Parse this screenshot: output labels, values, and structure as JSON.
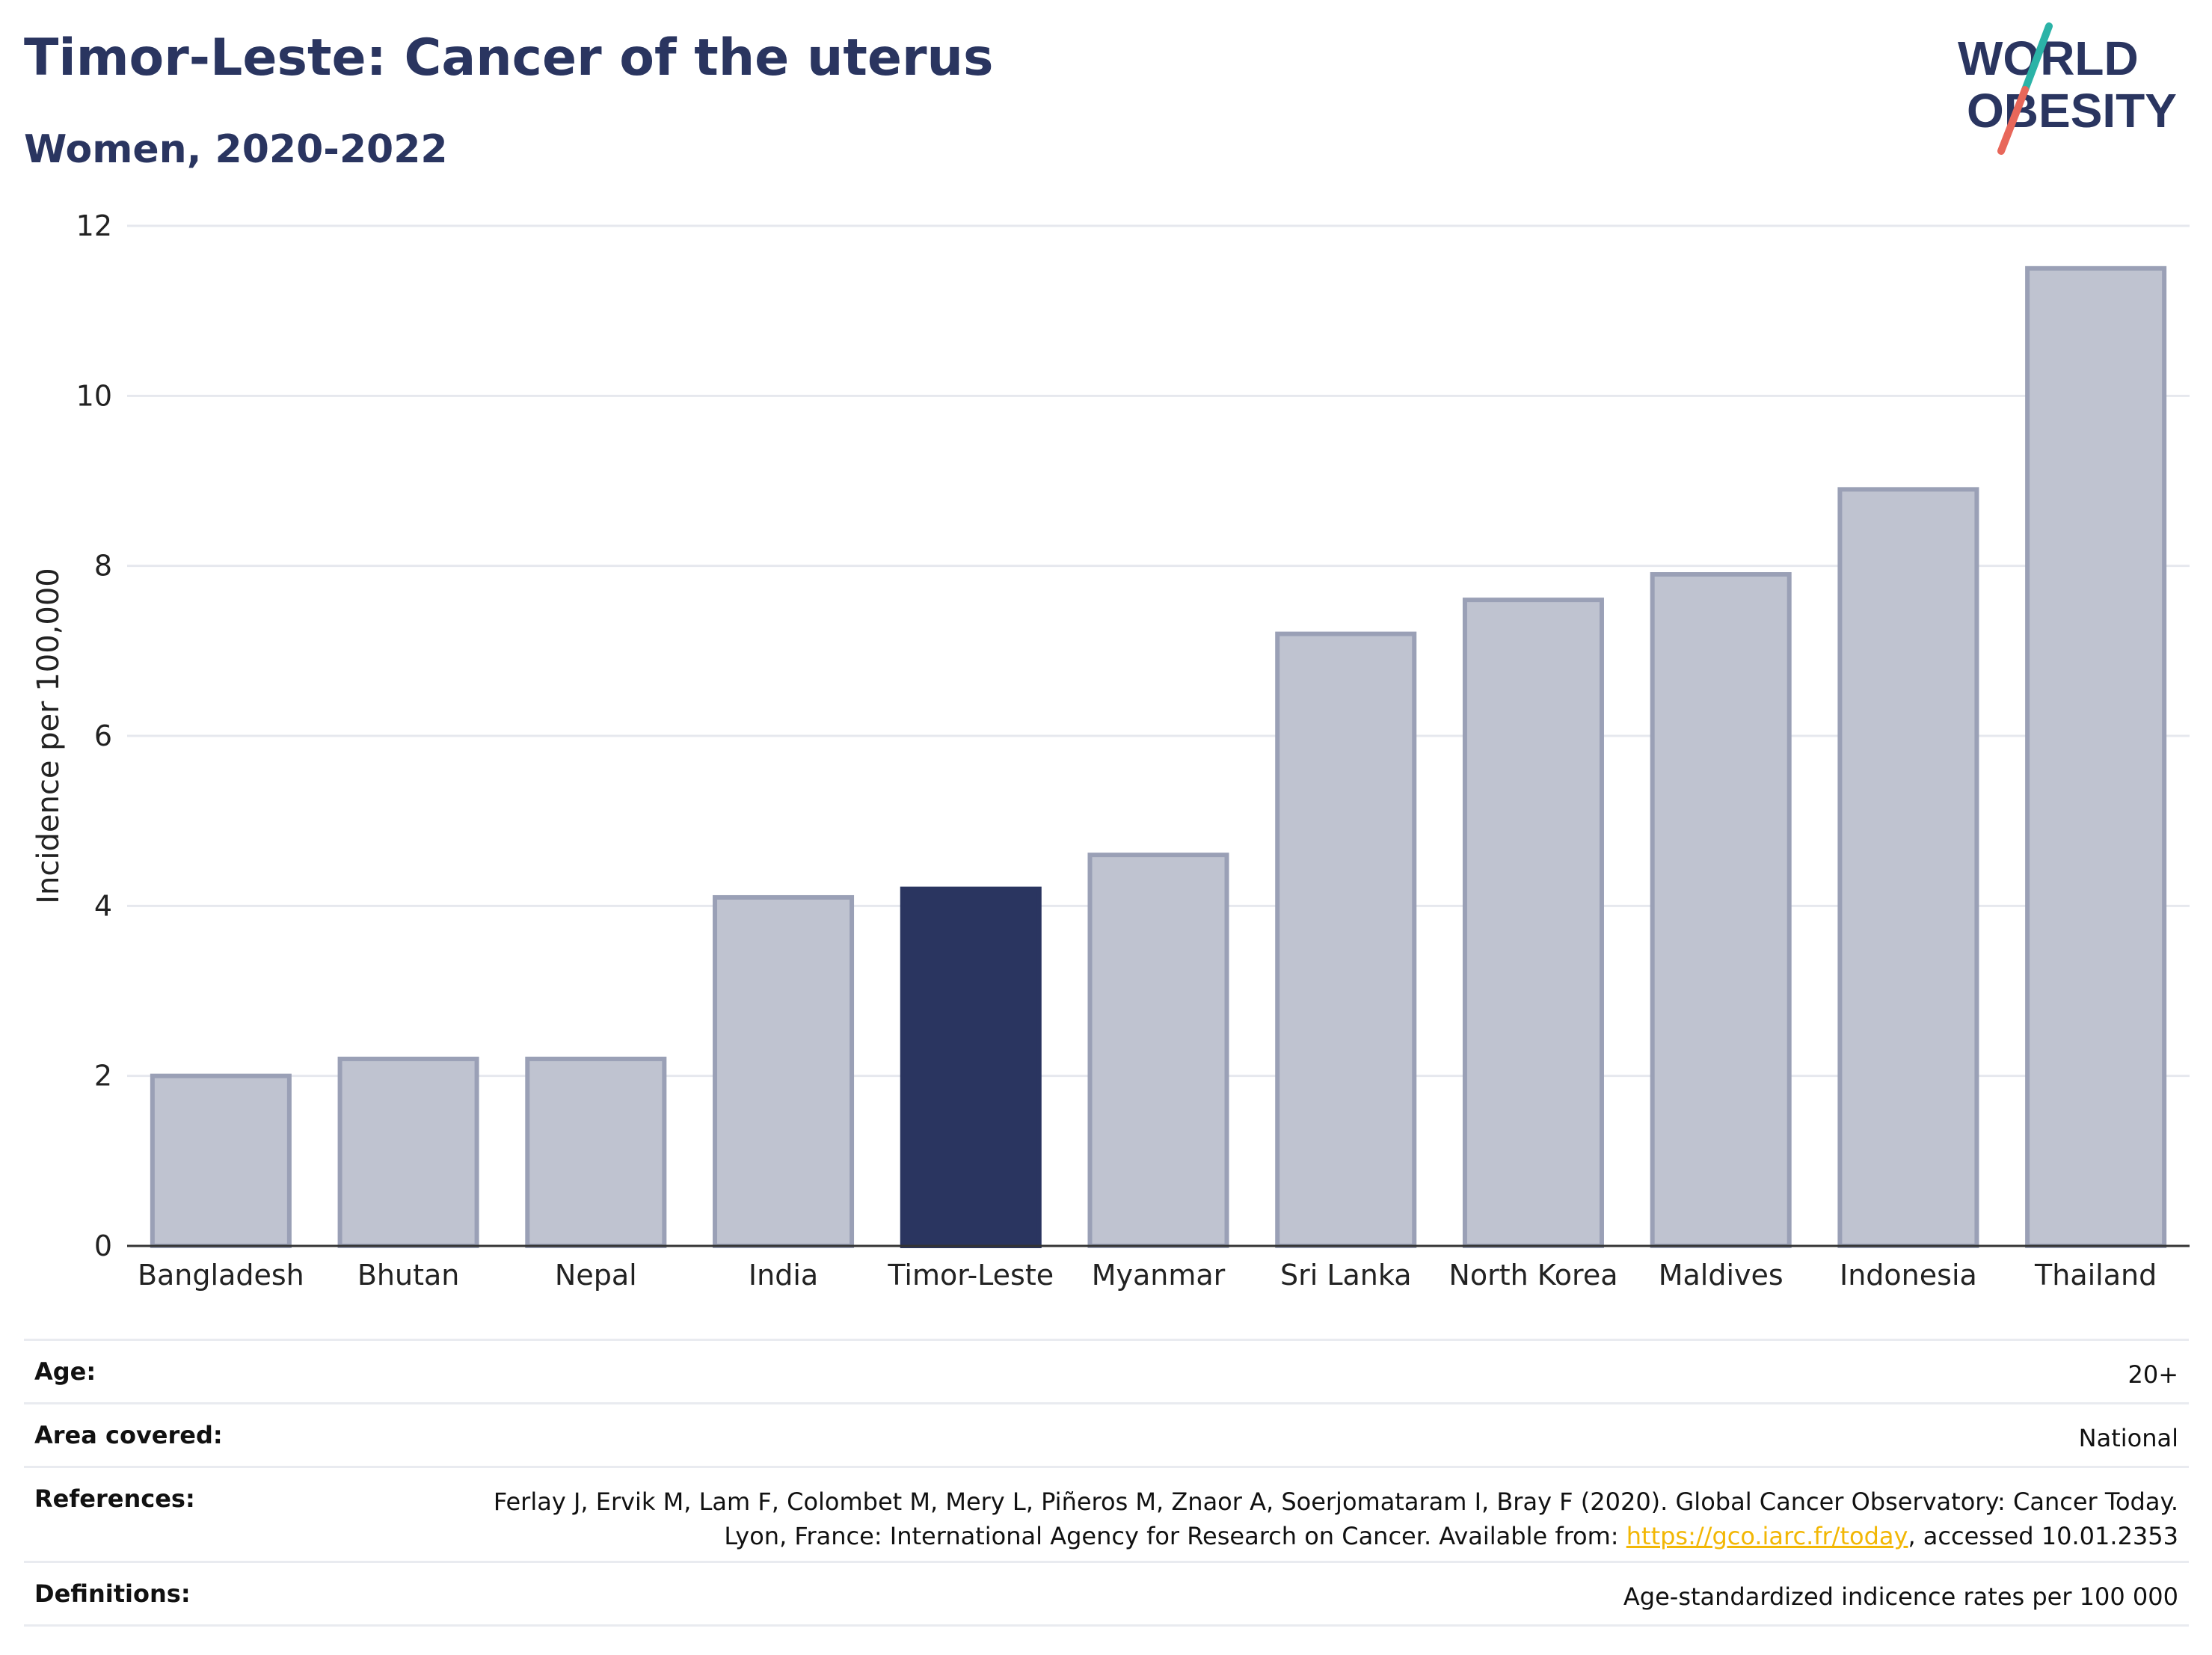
{
  "header": {
    "title": "Timor-Leste: Cancer of the uterus",
    "subtitle": "Women, 2020-2022"
  },
  "logo": {
    "line1": "WORLD",
    "line2": "OBESITY",
    "colors": {
      "text": "#2a3560",
      "slash_teal": "#2bb3a7",
      "slash_coral": "#e8675a"
    }
  },
  "chart_data": {
    "type": "bar",
    "categories": [
      "Bangladesh",
      "Bhutan",
      "Nepal",
      "India",
      "Timor-Leste",
      "Myanmar",
      "Sri Lanka",
      "North Korea",
      "Maldives",
      "Indonesia",
      "Thailand"
    ],
    "values": [
      2.0,
      2.2,
      2.2,
      4.1,
      4.2,
      4.6,
      7.2,
      7.6,
      7.9,
      8.9,
      11.5
    ],
    "highlight": "Timor-Leste",
    "ylabel": "Incidence per 100,000",
    "ylim": [
      0,
      12
    ],
    "yticks": [
      0,
      2,
      4,
      6,
      8,
      10,
      12
    ],
    "grid": true,
    "colors": {
      "bar": "#bfc3d0",
      "bar_edge": "#9aa0b6",
      "highlight": "#2a3560",
      "grid": "#e6e8ee",
      "axis": "#333333"
    }
  },
  "info": {
    "age_label": "Age:",
    "age_value": "20+",
    "area_label": "Area covered:",
    "area_value": "National",
    "ref_label": "References:",
    "ref_text_1": "Ferlay J, Ervik M, Lam F, Colombet M, Mery L, Piñeros M, Znaor A, Soerjomataram I, Bray F (2020). Global Cancer Observatory: Cancer Today. Lyon, France: International Agency for Research on Cancer. Available from: ",
    "ref_link": "https://gco.iarc.fr/today",
    "ref_text_2": ", accessed 10.01.2353",
    "def_label": "Definitions:",
    "def_value": "Age-standardized indicence rates per 100 000"
  }
}
